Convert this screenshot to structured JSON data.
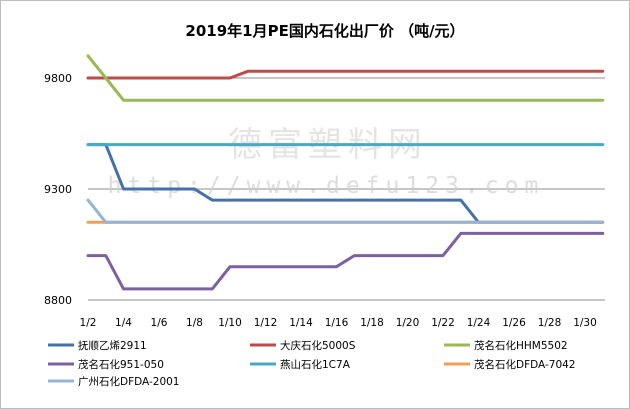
{
  "chart_data": {
    "type": "line",
    "title": "2019年1月PE国内石化出厂价 （吨/元）",
    "xlabel": "",
    "ylabel": "",
    "x": [
      "1/2",
      "1/3",
      "1/4",
      "1/5",
      "1/6",
      "1/7",
      "1/8",
      "1/9",
      "1/10",
      "1/11",
      "1/12",
      "1/13",
      "1/14",
      "1/15",
      "1/16",
      "1/17",
      "1/18",
      "1/19",
      "1/20",
      "1/21",
      "1/22",
      "1/23",
      "1/24",
      "1/25",
      "1/26",
      "1/27",
      "1/28",
      "1/29",
      "1/30",
      "1/31"
    ],
    "x_tick_labels": [
      "1/2",
      "1/4",
      "1/6",
      "1/8",
      "1/10",
      "1/12",
      "1/14",
      "1/16",
      "1/18",
      "1/20",
      "1/22",
      "1/24",
      "1/26",
      "1/28",
      "1/30"
    ],
    "y_tick_labels": [
      "8800",
      "9300",
      "9800"
    ],
    "ylim": [
      8800,
      9800
    ],
    "grid": true,
    "legend_position": "bottom",
    "series": [
      {
        "name": "抚顺乙烯2911",
        "color": "#4472a8",
        "values": [
          9500,
          9500,
          9300,
          9300,
          9300,
          9300,
          9300,
          9250,
          9250,
          9250,
          9250,
          9250,
          9250,
          9250,
          9250,
          9250,
          9250,
          9250,
          9250,
          9250,
          9250,
          9250,
          9150,
          9150,
          9150,
          9150,
          9150,
          9150,
          9150,
          9150
        ]
      },
      {
        "name": "大庆石化5000S",
        "color": "#be4b48",
        "values": [
          9800,
          9800,
          9800,
          9800,
          9800,
          9800,
          9800,
          9800,
          9800,
          9830,
          9830,
          9830,
          9830,
          9830,
          9830,
          9830,
          9830,
          9830,
          9830,
          9830,
          9830,
          9830,
          9830,
          9830,
          9830,
          9830,
          9830,
          9830,
          9830,
          9830
        ]
      },
      {
        "name": "茂名石化HHM5502",
        "color": "#98b954",
        "values": [
          9900,
          9800,
          9700,
          9700,
          9700,
          9700,
          9700,
          9700,
          9700,
          9700,
          9700,
          9700,
          9700,
          9700,
          9700,
          9700,
          9700,
          9700,
          9700,
          9700,
          9700,
          9700,
          9700,
          9700,
          9700,
          9700,
          9700,
          9700,
          9700,
          9700
        ]
      },
      {
        "name": "茂名石化951-050",
        "color": "#7d60a0",
        "values": [
          9000,
          9000,
          8850,
          8850,
          8850,
          8850,
          8850,
          8850,
          8950,
          8950,
          8950,
          8950,
          8950,
          8950,
          8950,
          9000,
          9000,
          9000,
          9000,
          9000,
          9000,
          9100,
          9100,
          9100,
          9100,
          9100,
          9100,
          9100,
          9100,
          9100
        ]
      },
      {
        "name": "燕山石化1C7A",
        "color": "#46aac5",
        "values": [
          9500,
          9500,
          9500,
          9500,
          9500,
          9500,
          9500,
          9500,
          9500,
          9500,
          9500,
          9500,
          9500,
          9500,
          9500,
          9500,
          9500,
          9500,
          9500,
          9500,
          9500,
          9500,
          9500,
          9500,
          9500,
          9500,
          9500,
          9500,
          9500,
          9500
        ]
      },
      {
        "name": "茂名石化DFDA-7042",
        "color": "#f59d56",
        "values": [
          9150,
          9150,
          9150,
          9150,
          9150,
          9150,
          9150,
          9150,
          9150,
          9150,
          9150,
          9150,
          9150,
          9150,
          9150,
          9150,
          9150,
          9150,
          9150,
          9150,
          9150,
          9150,
          9150,
          9150,
          9150,
          9150,
          9150,
          9150,
          9150,
          9150
        ]
      },
      {
        "name": "广州石化DFDA-2001",
        "color": "#95b3d7",
        "values": [
          9250,
          9150,
          9150,
          9150,
          9150,
          9150,
          9150,
          9150,
          9150,
          9150,
          9150,
          9150,
          9150,
          9150,
          9150,
          9150,
          9150,
          9150,
          9150,
          9150,
          9150,
          9150,
          9150,
          9150,
          9150,
          9150,
          9150,
          9150,
          9150,
          9150
        ]
      }
    ]
  },
  "watermark": {
    "line1": "德富塑料网",
    "line2": "http://www.defu123.com"
  }
}
